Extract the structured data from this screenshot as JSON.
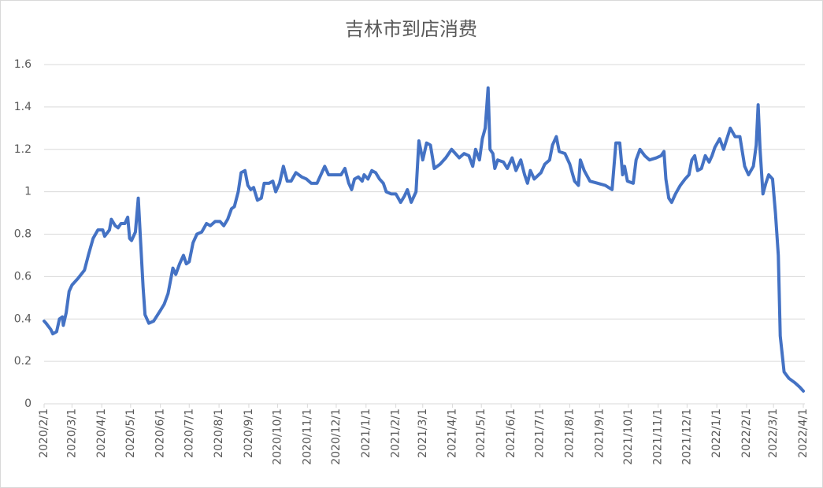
{
  "chart_data": {
    "type": "line",
    "title": "吉林市到店消费",
    "x": [
      "2020/2/1",
      "2020/2/3",
      "2020/2/8",
      "2020/2/10",
      "2020/2/14",
      "2020/2/17",
      "2020/2/20",
      "2020/2/21",
      "2020/2/24",
      "2020/2/27",
      "2020/3/1",
      "2020/3/7",
      "2020/3/14",
      "2020/3/18",
      "2020/3/23",
      "2020/3/28",
      "2020/4/2",
      "2020/4/4",
      "2020/4/9",
      "2020/4/11",
      "2020/4/15",
      "2020/4/18",
      "2020/4/21",
      "2020/4/25",
      "2020/4/28",
      "2020/4/30",
      "2020/5/2",
      "2020/5/6",
      "2020/5/9",
      "2020/5/11",
      "2020/5/14",
      "2020/5/16",
      "2020/5/20",
      "2020/5/25",
      "2020/6/1",
      "2020/6/5",
      "2020/6/9",
      "2020/6/14",
      "2020/6/17",
      "2020/6/21",
      "2020/6/25",
      "2020/6/28",
      "2020/7/1",
      "2020/7/5",
      "2020/7/9",
      "2020/7/14",
      "2020/7/19",
      "2020/7/23",
      "2020/7/28",
      "2020/8/2",
      "2020/8/6",
      "2020/8/10",
      "2020/8/14",
      "2020/8/17",
      "2020/8/21",
      "2020/8/24",
      "2020/8/28",
      "2020/8/31",
      "2020/9/3",
      "2020/9/6",
      "2020/9/10",
      "2020/9/14",
      "2020/9/17",
      "2020/9/22",
      "2020/9/26",
      "2020/9/29",
      "2020/10/3",
      "2020/10/7",
      "2020/10/11",
      "2020/10/15",
      "2020/10/20",
      "2020/10/26",
      "2020/10/31",
      "2020/11/5",
      "2020/11/11",
      "2020/11/15",
      "2020/11/19",
      "2020/11/23",
      "2020/11/30",
      "2020/12/6",
      "2020/12/10",
      "2020/12/14",
      "2020/12/17",
      "2020/12/20",
      "2020/12/24",
      "2020/12/28",
      "2020/12/30",
      "2021/1/3",
      "2021/1/7",
      "2021/1/11",
      "2021/1/15",
      "2021/1/19",
      "2021/1/22",
      "2021/1/27",
      "2021/2/1",
      "2021/2/6",
      "2021/2/10",
      "2021/2/13",
      "2021/2/17",
      "2021/2/22",
      "2021/2/25",
      "2021/3/1",
      "2021/3/5",
      "2021/3/9",
      "2021/3/13",
      "2021/3/19",
      "2021/3/25",
      "2021/3/31",
      "2021/4/4",
      "2021/4/8",
      "2021/4/13",
      "2021/4/18",
      "2021/4/22",
      "2021/4/25",
      "2021/4/29",
      "2021/5/2",
      "2021/5/5",
      "2021/5/8",
      "2021/5/10",
      "2021/5/13",
      "2021/5/15",
      "2021/5/18",
      "2021/5/24",
      "2021/5/28",
      "2021/6/2",
      "2021/6/6",
      "2021/6/11",
      "2021/6/15",
      "2021/6/18",
      "2021/6/21",
      "2021/6/25",
      "2021/7/2",
      "2021/7/6",
      "2021/7/11",
      "2021/7/14",
      "2021/7/18",
      "2021/7/21",
      "2021/7/27",
      "2021/8/1",
      "2021/8/6",
      "2021/8/10",
      "2021/8/12",
      "2021/8/16",
      "2021/8/22",
      "2021/8/30",
      "2021/9/7",
      "2021/9/14",
      "2021/9/18",
      "2021/9/22",
      "2021/9/25",
      "2021/9/27",
      "2021/9/30",
      "2021/10/6",
      "2021/10/9",
      "2021/10/13",
      "2021/10/18",
      "2021/10/23",
      "2021/10/30",
      "2021/11/4",
      "2021/11/7",
      "2021/11/9",
      "2021/11/12",
      "2021/11/15",
      "2021/11/19",
      "2021/11/24",
      "2021/11/29",
      "2021/12/3",
      "2021/12/6",
      "2021/12/9",
      "2021/12/12",
      "2021/12/16",
      "2021/12/20",
      "2021/12/24",
      "2021/12/27",
      "2021/12/30",
      "2022/1/4",
      "2022/1/8",
      "2022/1/15",
      "2022/1/20",
      "2022/1/25",
      "2022/1/30",
      "2022/2/3",
      "2022/2/8",
      "2022/2/11",
      "2022/2/13",
      "2022/2/15",
      "2022/2/18",
      "2022/2/21",
      "2022/2/24",
      "2022/2/28",
      "2022/3/3",
      "2022/3/6",
      "2022/3/8",
      "2022/3/12",
      "2022/3/17",
      "2022/3/23",
      "2022/3/28",
      "2022/4/1"
    ],
    "series": [
      {
        "color": "#4472c4",
        "values": [
          0.39,
          0.38,
          0.35,
          0.33,
          0.34,
          0.4,
          0.41,
          0.37,
          0.43,
          0.53,
          0.56,
          0.59,
          0.63,
          0.7,
          0.78,
          0.82,
          0.82,
          0.79,
          0.82,
          0.87,
          0.84,
          0.83,
          0.85,
          0.85,
          0.88,
          0.78,
          0.77,
          0.81,
          0.97,
          0.8,
          0.55,
          0.42,
          0.38,
          0.39,
          0.44,
          0.47,
          0.52,
          0.64,
          0.61,
          0.66,
          0.7,
          0.66,
          0.67,
          0.76,
          0.8,
          0.81,
          0.85,
          0.84,
          0.86,
          0.86,
          0.84,
          0.87,
          0.92,
          0.93,
          1.0,
          1.09,
          1.1,
          1.03,
          1.01,
          1.02,
          0.96,
          0.97,
          1.04,
          1.04,
          1.05,
          1.0,
          1.04,
          1.12,
          1.05,
          1.05,
          1.09,
          1.07,
          1.06,
          1.04,
          1.04,
          1.08,
          1.12,
          1.08,
          1.08,
          1.08,
          1.11,
          1.04,
          1.01,
          1.06,
          1.07,
          1.05,
          1.08,
          1.06,
          1.1,
          1.09,
          1.06,
          1.04,
          1.0,
          0.99,
          0.99,
          0.95,
          0.98,
          1.01,
          0.95,
          1.0,
          1.24,
          1.15,
          1.23,
          1.22,
          1.11,
          1.13,
          1.16,
          1.2,
          1.18,
          1.16,
          1.18,
          1.17,
          1.12,
          1.2,
          1.15,
          1.25,
          1.3,
          1.49,
          1.2,
          1.18,
          1.11,
          1.15,
          1.14,
          1.11,
          1.16,
          1.1,
          1.15,
          1.08,
          1.04,
          1.1,
          1.06,
          1.09,
          1.13,
          1.15,
          1.22,
          1.26,
          1.19,
          1.18,
          1.13,
          1.05,
          1.03,
          1.15,
          1.1,
          1.05,
          1.04,
          1.03,
          1.01,
          1.23,
          1.23,
          1.08,
          1.12,
          1.05,
          1.04,
          1.15,
          1.2,
          1.17,
          1.15,
          1.16,
          1.17,
          1.19,
          1.06,
          0.97,
          0.95,
          0.99,
          1.03,
          1.06,
          1.08,
          1.15,
          1.17,
          1.1,
          1.11,
          1.17,
          1.14,
          1.17,
          1.21,
          1.25,
          1.2,
          1.3,
          1.26,
          1.26,
          1.12,
          1.08,
          1.12,
          1.22,
          1.41,
          1.2,
          0.99,
          1.04,
          1.08,
          1.06,
          0.9,
          0.7,
          0.32,
          0.15,
          0.12,
          0.1,
          0.08,
          0.06
        ]
      }
    ],
    "xlim": [
      "2020/2/1",
      "2022/4/1"
    ],
    "xticks": [
      "2020/2/1",
      "2020/3/1",
      "2020/4/1",
      "2020/5/1",
      "2020/6/1",
      "2020/7/1",
      "2020/8/1",
      "2020/9/1",
      "2020/10/1",
      "2020/11/1",
      "2020/12/1",
      "2021/1/1",
      "2021/2/1",
      "2021/3/1",
      "2021/4/1",
      "2021/5/1",
      "2021/6/1",
      "2021/7/1",
      "2021/8/1",
      "2021/9/1",
      "2021/10/1",
      "2021/11/1",
      "2021/12/1",
      "2022/1/1",
      "2022/2/1",
      "2022/3/1",
      "2022/4/1"
    ],
    "ylim": [
      0,
      1.6
    ],
    "yticks": [
      0,
      0.2,
      0.4,
      0.6,
      0.8,
      1,
      1.2,
      1.4,
      1.6
    ],
    "grid": true
  }
}
